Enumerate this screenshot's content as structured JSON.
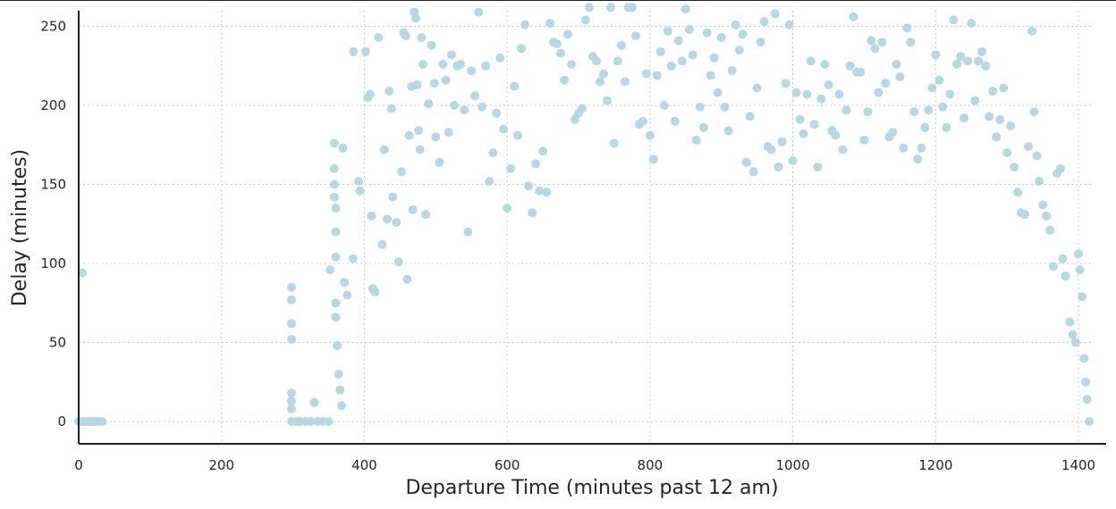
{
  "chart_data": {
    "type": "scatter",
    "title": "",
    "xlabel": "Departure Time (minutes past 12 am)",
    "ylabel": "Delay (minutes)",
    "xlim": [
      0,
      1425
    ],
    "ylim": [
      -14,
      260
    ],
    "x_ticks": [
      0,
      200,
      400,
      600,
      800,
      1000,
      1200,
      1400
    ],
    "y_ticks": [
      0,
      50,
      100,
      150,
      200,
      250
    ],
    "grid": true,
    "legend": "none",
    "marker_color": "#b7d8e3",
    "axis_color": "#222222",
    "grid_color": "#cccccc",
    "series": [
      {
        "points_sampled": [
          [
            5,
            94
          ],
          [
            0,
            0
          ],
          [
            3,
            0
          ],
          [
            8,
            0
          ],
          [
            12,
            0
          ],
          [
            16,
            0
          ],
          [
            20,
            0
          ],
          [
            24,
            0
          ],
          [
            28,
            0
          ],
          [
            33,
            0
          ],
          [
            298,
            85
          ],
          [
            298,
            77
          ],
          [
            298,
            62
          ],
          [
            298,
            52
          ],
          [
            298,
            18
          ],
          [
            298,
            13
          ],
          [
            298,
            8
          ],
          [
            298,
            0
          ],
          [
            305,
            0
          ],
          [
            310,
            0
          ],
          [
            318,
            0
          ],
          [
            325,
            0
          ],
          [
            330,
            12
          ],
          [
            335,
            0
          ],
          [
            342,
            0
          ],
          [
            350,
            0
          ],
          [
            352,
            96
          ],
          [
            358,
            176
          ],
          [
            358,
            160
          ],
          [
            358,
            150
          ],
          [
            358,
            142
          ],
          [
            360,
            135
          ],
          [
            360,
            120
          ],
          [
            360,
            104
          ],
          [
            360,
            75
          ],
          [
            360,
            66
          ],
          [
            362,
            48
          ],
          [
            364,
            30
          ],
          [
            366,
            20
          ],
          [
            368,
            10
          ],
          [
            370,
            173
          ],
          [
            372,
            88
          ],
          [
            376,
            80
          ],
          [
            384,
            103
          ],
          [
            385,
            234
          ],
          [
            392,
            152
          ],
          [
            394,
            146
          ],
          [
            402,
            234
          ],
          [
            405,
            205
          ],
          [
            408,
            207
          ],
          [
            410,
            130
          ],
          [
            412,
            84
          ],
          [
            415,
            82
          ],
          [
            420,
            243
          ],
          [
            425,
            112
          ],
          [
            428,
            172
          ],
          [
            432,
            128
          ],
          [
            435,
            209
          ],
          [
            438,
            198
          ],
          [
            440,
            142
          ],
          [
            445,
            126
          ],
          [
            448,
            101
          ],
          [
            452,
            158
          ],
          [
            455,
            246
          ],
          [
            458,
            244
          ],
          [
            460,
            90
          ],
          [
            463,
            181
          ],
          [
            466,
            212
          ],
          [
            468,
            134
          ],
          [
            470,
            259
          ],
          [
            472,
            255
          ],
          [
            474,
            213
          ],
          [
            476,
            184
          ],
          [
            478,
            172
          ],
          [
            480,
            243
          ],
          [
            482,
            226
          ],
          [
            486,
            131
          ],
          [
            490,
            201
          ],
          [
            494,
            238
          ],
          [
            498,
            214
          ],
          [
            500,
            180
          ],
          [
            505,
            164
          ],
          [
            510,
            226
          ],
          [
            514,
            216
          ],
          [
            518,
            183
          ],
          [
            522,
            232
          ],
          [
            526,
            200
          ],
          [
            530,
            225
          ],
          [
            535,
            226
          ],
          [
            540,
            197
          ],
          [
            545,
            120
          ],
          [
            550,
            222
          ],
          [
            555,
            206
          ],
          [
            560,
            259
          ],
          [
            565,
            199
          ],
          [
            570,
            225
          ],
          [
            575,
            152
          ],
          [
            580,
            170
          ],
          [
            585,
            195
          ],
          [
            590,
            230
          ],
          [
            595,
            185
          ],
          [
            600,
            135
          ],
          [
            605,
            160
          ],
          [
            610,
            212
          ],
          [
            615,
            181
          ],
          [
            620,
            236
          ],
          [
            625,
            251
          ],
          [
            630,
            149
          ],
          [
            635,
            132
          ],
          [
            640,
            163
          ],
          [
            645,
            146
          ],
          [
            650,
            171
          ],
          [
            655,
            145
          ],
          [
            660,
            252
          ],
          [
            665,
            240
          ],
          [
            670,
            239
          ],
          [
            675,
            233
          ],
          [
            680,
            216
          ],
          [
            685,
            245
          ],
          [
            690,
            226
          ],
          [
            695,
            191
          ],
          [
            700,
            195
          ],
          [
            705,
            198
          ],
          [
            710,
            254
          ],
          [
            715,
            262
          ],
          [
            720,
            231
          ],
          [
            725,
            228
          ],
          [
            730,
            215
          ],
          [
            735,
            220
          ],
          [
            740,
            203
          ],
          [
            745,
            262
          ],
          [
            750,
            176
          ],
          [
            755,
            228
          ],
          [
            760,
            238
          ],
          [
            765,
            215
          ],
          [
            770,
            262
          ],
          [
            775,
            262
          ],
          [
            780,
            244
          ],
          [
            785,
            188
          ],
          [
            790,
            190
          ],
          [
            795,
            220
          ],
          [
            800,
            181
          ],
          [
            805,
            166
          ],
          [
            810,
            219
          ],
          [
            815,
            234
          ],
          [
            820,
            200
          ],
          [
            825,
            247
          ],
          [
            830,
            225
          ],
          [
            835,
            190
          ],
          [
            840,
            241
          ],
          [
            845,
            228
          ],
          [
            850,
            261
          ],
          [
            855,
            248
          ],
          [
            860,
            232
          ],
          [
            865,
            178
          ],
          [
            870,
            199
          ],
          [
            875,
            186
          ],
          [
            880,
            246
          ],
          [
            885,
            219
          ],
          [
            890,
            230
          ],
          [
            895,
            208
          ],
          [
            900,
            243
          ],
          [
            905,
            199
          ],
          [
            910,
            184
          ],
          [
            915,
            222
          ],
          [
            920,
            251
          ],
          [
            925,
            235
          ],
          [
            930,
            245
          ],
          [
            935,
            164
          ],
          [
            940,
            193
          ],
          [
            945,
            158
          ],
          [
            950,
            211
          ],
          [
            955,
            240
          ],
          [
            960,
            253
          ],
          [
            965,
            174
          ],
          [
            970,
            172
          ],
          [
            975,
            258
          ],
          [
            980,
            161
          ],
          [
            985,
            177
          ],
          [
            990,
            214
          ],
          [
            995,
            251
          ],
          [
            1000,
            165
          ],
          [
            1005,
            208
          ],
          [
            1010,
            191
          ],
          [
            1015,
            182
          ],
          [
            1020,
            207
          ],
          [
            1025,
            228
          ],
          [
            1030,
            188
          ],
          [
            1035,
            161
          ],
          [
            1040,
            204
          ],
          [
            1045,
            226
          ],
          [
            1050,
            213
          ],
          [
            1055,
            184
          ],
          [
            1060,
            181
          ],
          [
            1065,
            207
          ],
          [
            1070,
            172
          ],
          [
            1075,
            197
          ],
          [
            1080,
            225
          ],
          [
            1085,
            256
          ],
          [
            1090,
            221
          ],
          [
            1095,
            221
          ],
          [
            1100,
            178
          ],
          [
            1105,
            196
          ],
          [
            1110,
            241
          ],
          [
            1115,
            236
          ],
          [
            1120,
            208
          ],
          [
            1125,
            240
          ],
          [
            1130,
            214
          ],
          [
            1135,
            180
          ],
          [
            1140,
            183
          ],
          [
            1145,
            226
          ],
          [
            1150,
            218
          ],
          [
            1155,
            173
          ],
          [
            1160,
            249
          ],
          [
            1165,
            240
          ],
          [
            1170,
            196
          ],
          [
            1175,
            166
          ],
          [
            1180,
            173
          ],
          [
            1185,
            186
          ],
          [
            1190,
            197
          ],
          [
            1195,
            211
          ],
          [
            1200,
            232
          ],
          [
            1205,
            216
          ],
          [
            1210,
            199
          ],
          [
            1215,
            186
          ],
          [
            1220,
            207
          ],
          [
            1225,
            254
          ],
          [
            1230,
            226
          ],
          [
            1235,
            231
          ],
          [
            1240,
            192
          ],
          [
            1245,
            228
          ],
          [
            1250,
            252
          ],
          [
            1255,
            203
          ],
          [
            1260,
            228
          ],
          [
            1265,
            234
          ],
          [
            1270,
            225
          ],
          [
            1275,
            193
          ],
          [
            1280,
            209
          ],
          [
            1285,
            180
          ],
          [
            1290,
            191
          ],
          [
            1295,
            211
          ],
          [
            1300,
            170
          ],
          [
            1305,
            187
          ],
          [
            1310,
            161
          ],
          [
            1315,
            145
          ],
          [
            1320,
            132
          ],
          [
            1325,
            131
          ],
          [
            1330,
            174
          ],
          [
            1335,
            247
          ],
          [
            1338,
            196
          ],
          [
            1342,
            168
          ],
          [
            1345,
            152
          ],
          [
            1350,
            137
          ],
          [
            1355,
            130
          ],
          [
            1360,
            121
          ],
          [
            1365,
            98
          ],
          [
            1370,
            157
          ],
          [
            1375,
            160
          ],
          [
            1378,
            103
          ],
          [
            1382,
            92
          ],
          [
            1388,
            63
          ],
          [
            1392,
            55
          ],
          [
            1396,
            50
          ],
          [
            1400,
            106
          ],
          [
            1402,
            96
          ],
          [
            1405,
            79
          ],
          [
            1408,
            40
          ],
          [
            1410,
            25
          ],
          [
            1412,
            14
          ],
          [
            1415,
            0
          ]
        ]
      }
    ]
  }
}
